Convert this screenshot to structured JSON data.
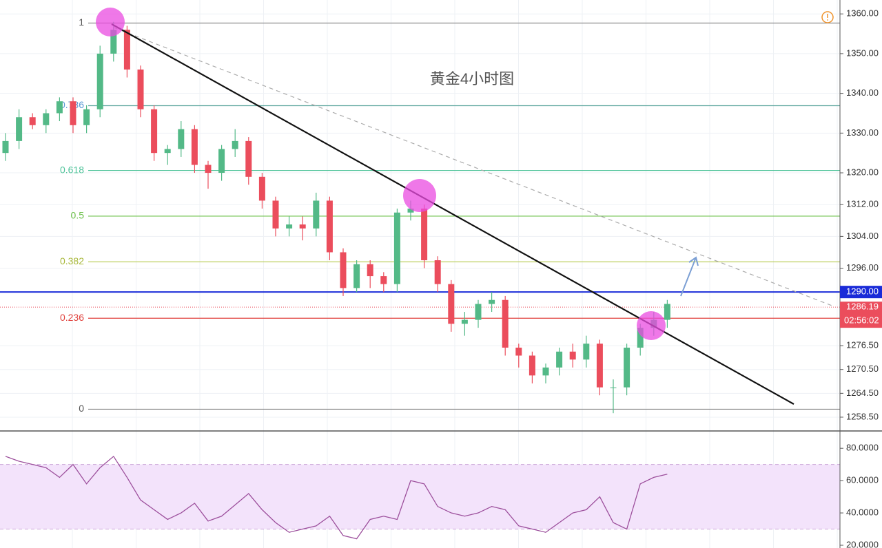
{
  "chart_data": [
    {
      "type": "candlestick",
      "annotation": "黄金4小时图",
      "open": [
        1325,
        1328,
        1334,
        1332,
        1335,
        1338,
        1332,
        1336,
        1350,
        1356,
        1346,
        1336,
        1325,
        1326,
        1331,
        1322,
        1320,
        1326,
        1328,
        1319,
        1313,
        1306,
        1307,
        1306,
        1313,
        1300,
        1291,
        1297,
        1294,
        1292,
        1310,
        1311,
        1298,
        1292,
        1282,
        1283,
        1287,
        1288,
        1276,
        1274,
        1269,
        1271,
        1275,
        1273,
        1277,
        1266,
        1266,
        1276,
        1281,
        1283
      ],
      "high": [
        1330,
        1336,
        1335,
        1336,
        1339,
        1339,
        1337,
        1352,
        1358,
        1357,
        1347,
        1337,
        1327,
        1333,
        1332,
        1323,
        1327,
        1331,
        1329,
        1320,
        1314,
        1309,
        1309,
        1315,
        1314,
        1301,
        1298,
        1298,
        1295,
        1311,
        1313,
        1312,
        1299,
        1293,
        1285,
        1288,
        1290,
        1289,
        1277,
        1275,
        1272,
        1276,
        1277,
        1279,
        1278,
        1268,
        1277,
        1282,
        1285,
        1288
      ],
      "low": [
        1323,
        1326,
        1331,
        1330,
        1333,
        1330,
        1330,
        1334,
        1348,
        1344,
        1334,
        1323,
        1322,
        1324,
        1320,
        1316,
        1318,
        1324,
        1317,
        1311,
        1304,
        1304,
        1303,
        1304,
        1298,
        1289,
        1290,
        1291,
        1290,
        1290,
        1308,
        1296,
        1290,
        1280,
        1279,
        1281,
        1285,
        1274,
        1271,
        1267,
        1267,
        1269,
        1271,
        1271,
        1264,
        1259.5,
        1264,
        1274,
        1279,
        1281
      ],
      "close": [
        1328,
        1334,
        1332,
        1335,
        1338,
        1332,
        1336,
        1350,
        1356,
        1346,
        1336,
        1325,
        1326,
        1331,
        1322,
        1320,
        1326,
        1328,
        1319,
        1313,
        1306,
        1307,
        1306,
        1313,
        1300,
        1291,
        1297,
        1294,
        1292,
        1310,
        1311,
        1298,
        1292,
        1282,
        1283,
        1287,
        1288,
        1276,
        1274,
        1269,
        1271,
        1275,
        1273,
        1277,
        1266,
        1266,
        1276,
        1281,
        1283,
        1287
      ],
      "up_color": "#53b987",
      "down_color": "#eb4d5c",
      "ylim": [
        1255.2,
        1363.5
      ],
      "yticks": [
        {
          "value": 1360,
          "label": "1360.00"
        },
        {
          "value": 1350,
          "label": "1350.00"
        },
        {
          "value": 1340,
          "label": "1340.00"
        },
        {
          "value": 1330,
          "label": "1330.00"
        },
        {
          "value": 1320,
          "label": "1320.00"
        },
        {
          "value": 1312,
          "label": "1312.00"
        },
        {
          "value": 1304,
          "label": "1304.00"
        },
        {
          "value": 1296,
          "label": "1296.00"
        },
        {
          "value": 1276.5,
          "label": "1276.50"
        },
        {
          "value": 1270.5,
          "label": "1270.50"
        },
        {
          "value": 1264.5,
          "label": "1264.50"
        },
        {
          "value": 1258.5,
          "label": "1258.50"
        }
      ],
      "grid": true,
      "fib_levels": [
        {
          "ratio": 1,
          "price": 1357.7,
          "color": "#8a8a8a",
          "label_color": "#555555"
        },
        {
          "ratio": 0.786,
          "price": 1336.9,
          "color": "#5fa8a0",
          "label_color": "#5b9bd5"
        },
        {
          "ratio": 0.618,
          "price": 1320.6,
          "color": "#4fc39a",
          "label_color": "#4fc39a"
        },
        {
          "ratio": 0.5,
          "price": 1309.1,
          "color": "#6cc04a",
          "label_color": "#6cc04a"
        },
        {
          "ratio": 0.382,
          "price": 1297.6,
          "color": "#b5c94a",
          "label_color": "#a8b83a"
        },
        {
          "ratio": 0.236,
          "price": 1283.4,
          "color": "#e0413c",
          "label_color": "#e0413c"
        },
        {
          "ratio": 0,
          "price": 1260.5,
          "color": "#8a8a8a",
          "label_color": "#555555"
        }
      ],
      "horizontal_line": {
        "value": 1290,
        "label": "1290.00",
        "color": "#1a2bd8"
      },
      "last_price": 1286.19,
      "countdown": "02:56:02"
    },
    {
      "type": "line",
      "values": [
        75,
        72,
        70,
        68,
        62,
        70,
        58,
        68,
        75,
        62,
        48,
        42,
        36,
        40,
        46,
        35,
        38,
        45,
        52,
        42,
        34,
        28,
        30,
        32,
        38,
        26,
        24,
        36,
        38,
        36,
        60,
        58,
        44,
        40,
        38,
        40,
        44,
        42,
        32,
        30,
        28,
        34,
        40,
        42,
        50,
        34,
        30,
        58,
        62,
        64
      ],
      "color": "#9c4f9c",
      "ylim": [
        18.3,
        90.3
      ],
      "yticks": [
        {
          "value": 80,
          "label": "80.0000"
        },
        {
          "value": 60,
          "label": "60.0000"
        },
        {
          "value": 40,
          "label": "40.0000"
        },
        {
          "value": 20,
          "label": "20.0000"
        }
      ],
      "band": [
        30,
        70
      ],
      "band_color": "#f3e3fb"
    }
  ]
}
